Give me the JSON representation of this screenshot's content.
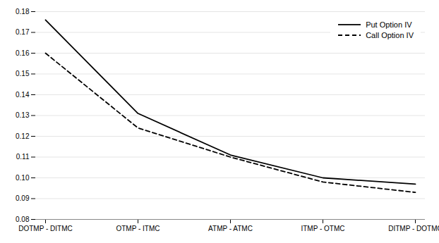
{
  "chart_data": {
    "type": "line",
    "categories": [
      "DOTMP - DITMC",
      "OTMP - ITMC",
      "ATMP - ATMC",
      "ITMP - OTMC",
      "DITMP - DOTMC"
    ],
    "series": [
      {
        "name": "Put Option IV",
        "color": "#000000",
        "line_style": "solid",
        "values": [
          0.176,
          0.131,
          0.111,
          0.1,
          0.097
        ]
      },
      {
        "name": "Call Option IV",
        "color": "#000000",
        "line_style": "dashed",
        "values": [
          0.16,
          0.124,
          0.11,
          0.098,
          0.093
        ]
      }
    ],
    "ylim": [
      0.08,
      0.18
    ],
    "yticks": [
      0.08,
      0.09,
      {
        "value": 0.1,
        "label": "0.10"
      },
      0.11,
      0.12,
      0.13,
      0.14,
      0.15,
      0.16,
      0.17,
      0.18
    ],
    "grid": true,
    "legend": "upper right"
  }
}
